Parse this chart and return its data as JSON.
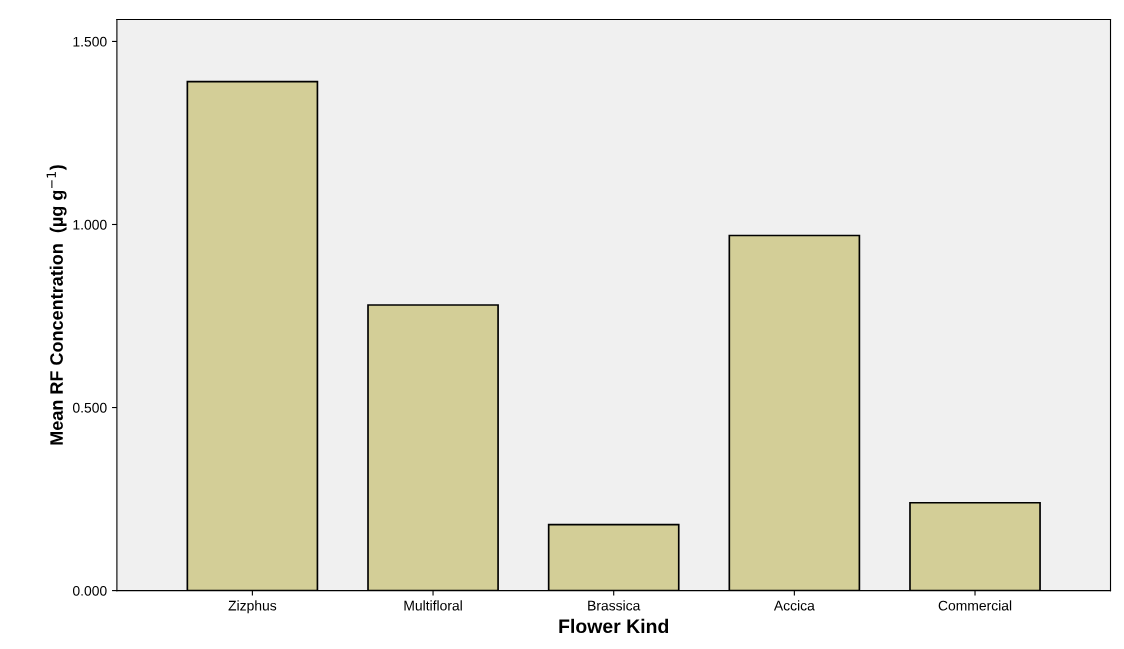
{
  "chart_data": {
    "type": "bar",
    "xlabel": "Flower Kind",
    "ylabel": "Mean RF Concentration  (µg g$^{−1}$)",
    "categories": [
      "Zizphus",
      "Multifloral",
      "Brassica",
      "Accica",
      "Commercial"
    ],
    "values": [
      1.39,
      0.78,
      0.18,
      0.97,
      0.24
    ],
    "color": "#d3ce97",
    "ylim": [
      0,
      1.56
    ],
    "yticks": [
      {
        "value": 0,
        "label": "0.000"
      },
      {
        "value": 0.5,
        "label": "0.500"
      },
      {
        "value": 1.0,
        "label": "1.000"
      },
      {
        "value": 1.5,
        "label": "1.500"
      }
    ],
    "grid": false,
    "legend": false
  }
}
